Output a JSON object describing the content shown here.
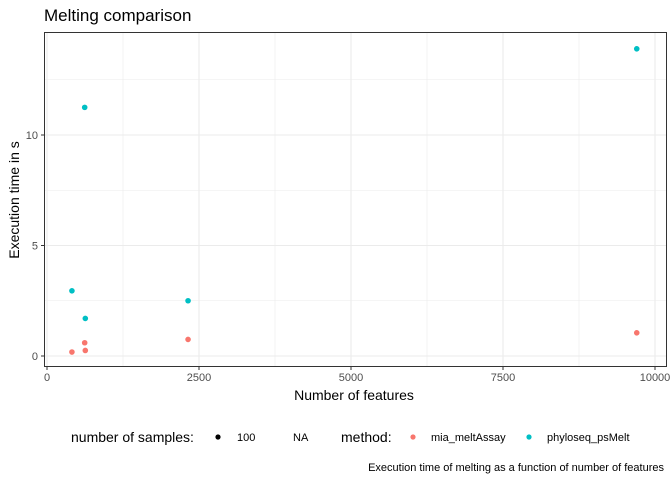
{
  "chart_data": {
    "type": "scatter",
    "title": "Melting comparison",
    "xlabel": "Number of features",
    "ylabel": "Execution time in s",
    "caption": "Execution time of melting as a function of number of features",
    "xlim": [
      0,
      10000
    ],
    "ylim": [
      0,
      14
    ],
    "x_ticks": [
      0,
      2500,
      5000,
      7500,
      10000
    ],
    "x_tick_labels": [
      "0",
      "2500",
      "5000",
      "7500",
      "10000"
    ],
    "y_ticks": [
      0,
      5,
      10
    ],
    "y_tick_labels": [
      "0",
      "5",
      "10"
    ],
    "grid": true,
    "legend_position": "bottom",
    "legend": {
      "size": {
        "title": "number of samples:",
        "entries": [
          {
            "label": "100"
          },
          {
            "label": "NA"
          }
        ]
      },
      "color": {
        "title": "method:",
        "entries": [
          {
            "label": "mia_meltAssay",
            "color": "#F8766D"
          },
          {
            "label": "phyloseq_psMelt",
            "color": "#00BFC4"
          }
        ]
      }
    },
    "series": [
      {
        "name": "mia_meltAssay",
        "color": "#F8766D",
        "points": [
          {
            "x": 410,
            "y": 0.18
          },
          {
            "x": 620,
            "y": 0.6
          },
          {
            "x": 630,
            "y": 0.25
          },
          {
            "x": 2320,
            "y": 0.75
          },
          {
            "x": 9700,
            "y": 1.05
          }
        ]
      },
      {
        "name": "phyloseq_psMelt",
        "color": "#00BFC4",
        "points": [
          {
            "x": 410,
            "y": 2.95
          },
          {
            "x": 620,
            "y": 11.25
          },
          {
            "x": 630,
            "y": 1.7
          },
          {
            "x": 2320,
            "y": 2.5
          },
          {
            "x": 9700,
            "y": 13.9
          }
        ]
      }
    ]
  }
}
